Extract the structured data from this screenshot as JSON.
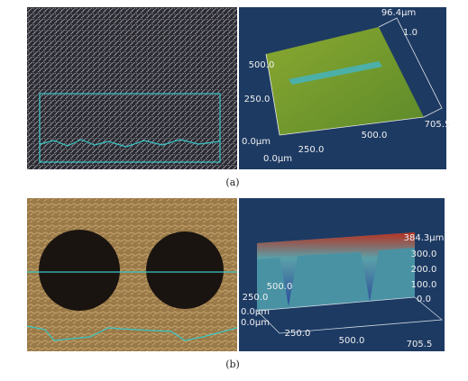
{
  "panels": [
    {
      "caption": "(a)",
      "plot_labels": [
        "96.4μm",
        "1.0",
        "500.0",
        "250.0",
        "0.0μm",
        "250.0",
        "500.0",
        "705.5",
        "0.0μm"
      ]
    },
    {
      "caption": "(b)",
      "plot_labels": [
        "384.3μm",
        "300.0",
        "200.0",
        "100.0",
        "0.0",
        "500.0",
        "250.0",
        "0.0μm",
        "0.0μm",
        "250.0",
        "500.0",
        "705.5"
      ]
    }
  ]
}
